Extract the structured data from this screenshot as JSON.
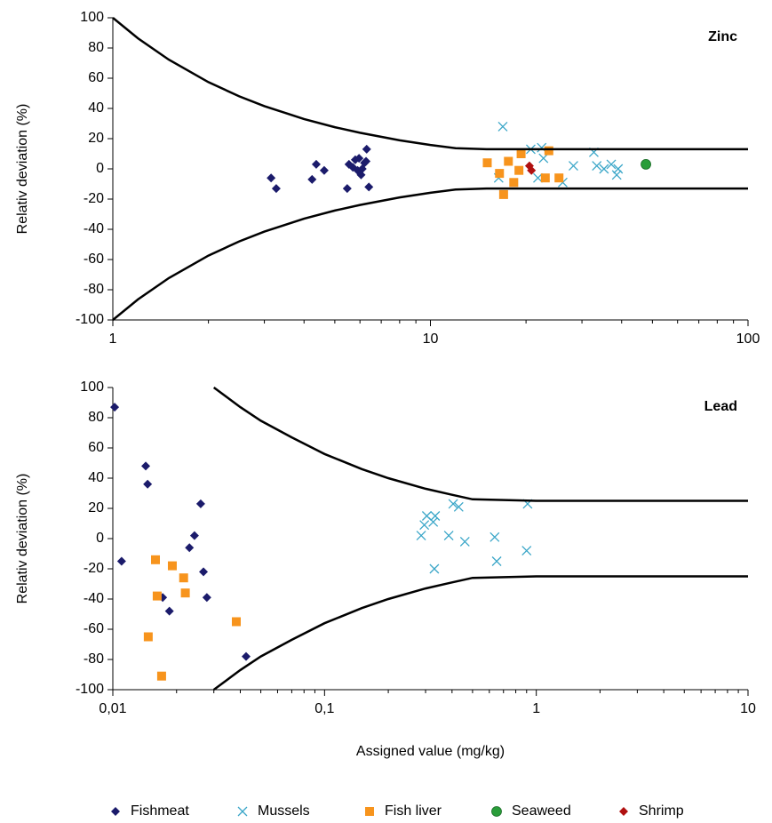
{
  "chart_data": [
    {
      "type": "scatter",
      "title": "Zinc",
      "y_label": "Relativ deviation (%)",
      "x_log": true,
      "xlim": [
        1,
        100
      ],
      "xticks": [
        1,
        10,
        100
      ],
      "ylim": [
        -100,
        100
      ],
      "yticks": [
        -100,
        -80,
        -60,
        -40,
        -20,
        0,
        20,
        40,
        60,
        80,
        100
      ],
      "series": [
        {
          "name": "Fishmeat",
          "color": "#1b1b6b",
          "marker": "diamond",
          "x": [
            3.15,
            3.27,
            4.24,
            4.37,
            4.63,
            5.47,
            5.54,
            5.7,
            5.8,
            5.9,
            5.96,
            6.05,
            6.1,
            6.2,
            6.27,
            6.3,
            6.4
          ],
          "values": [
            -6,
            -13,
            -7,
            3,
            -1,
            -13,
            3,
            1,
            6,
            -1,
            7,
            -4,
            0,
            4,
            5,
            13,
            -12
          ]
        },
        {
          "name": "Mussels",
          "color": "#3aa6c8",
          "marker": "x",
          "x": [
            16.9,
            16.4,
            20.7,
            22.4,
            22.7,
            21.8,
            26.1,
            28.2,
            32.7,
            33.4,
            35.2,
            37.1,
            38.6,
            39.0
          ],
          "values": [
            28,
            -6,
            13,
            14,
            7,
            -6,
            -9,
            2,
            11,
            2,
            0,
            3,
            -4,
            0
          ]
        },
        {
          "name": "Fish liver",
          "color": "#f7941d",
          "marker": "square",
          "x": [
            15.1,
            16.5,
            17.0,
            17.6,
            18.3,
            19.0,
            19.3,
            23.0,
            23.6,
            25.4
          ],
          "values": [
            4,
            -3,
            -17,
            5,
            -9,
            -1,
            10,
            -6,
            12,
            -6
          ]
        },
        {
          "name": "Seaweed",
          "color": "#2a9d3a",
          "marker": "circle",
          "x": [
            47.7
          ],
          "values": [
            3
          ]
        },
        {
          "name": "Shrimp",
          "color": "#b01010",
          "marker": "diamond",
          "x": [
            20.5,
            20.8
          ],
          "values": [
            2,
            -1
          ]
        },
        {
          "color": "#000000",
          "marker": "line",
          "x": [
            1,
            1.2,
            1.5,
            2,
            2.5,
            3,
            4,
            5,
            6,
            8,
            10,
            12,
            15,
            20,
            50,
            100
          ],
          "values": [
            100,
            86.4,
            72.3,
            57.4,
            48,
            41.5,
            33,
            27.6,
            23.9,
            18.9,
            15.8,
            13.7,
            13,
            13,
            13,
            13
          ]
        },
        {
          "color": "#000000",
          "marker": "line",
          "x": [
            1,
            1.2,
            1.5,
            2,
            2.5,
            3,
            4,
            5,
            6,
            8,
            10,
            12,
            15,
            20,
            50,
            100
          ],
          "values": [
            -100,
            -86.4,
            -72.3,
            -57.4,
            -48,
            -41.5,
            -33,
            -27.6,
            -23.9,
            -18.9,
            -15.8,
            -13.7,
            -13,
            -13,
            -13,
            -13
          ]
        }
      ]
    },
    {
      "type": "scatter",
      "title": "Lead",
      "y_label": "Relativ deviation (%)",
      "x_label": "Assigned value (mg/kg)",
      "x_log": true,
      "xlim": [
        0.01,
        10
      ],
      "xticks": [
        {
          "value": 0.01,
          "label": "0,01"
        },
        {
          "value": 0.1,
          "label": "0,1"
        },
        1,
        10
      ],
      "ylim": [
        -100,
        100
      ],
      "yticks": [
        -100,
        -80,
        -60,
        -40,
        -20,
        0,
        20,
        40,
        60,
        80,
        100
      ],
      "series": [
        {
          "name": "Fishmeat",
          "color": "#1b1b6b",
          "marker": "diamond",
          "x": [
            0.0102,
            0.011,
            0.0143,
            0.0146,
            0.0172,
            0.0185,
            0.023,
            0.0243,
            0.026,
            0.0268,
            0.0278,
            0.0426
          ],
          "values": [
            87,
            -15,
            48,
            36,
            -39,
            -48,
            -6,
            2,
            23,
            -22,
            -39,
            -78
          ]
        },
        {
          "name": "Mussels",
          "color": "#3aa6c8",
          "marker": "x",
          "x": [
            0.286,
            0.296,
            0.304,
            0.326,
            0.333,
            0.33,
            0.386,
            0.405,
            0.43,
            0.46,
            0.636,
            0.65,
            0.91,
            0.9
          ],
          "values": [
            2,
            9,
            15,
            11,
            15,
            -20,
            2,
            23,
            21,
            -2,
            1,
            -15,
            23,
            -8
          ]
        },
        {
          "name": "Fish liver",
          "color": "#f7941d",
          "marker": "square",
          "x": [
            0.0159,
            0.0162,
            0.0147,
            0.017,
            0.0191,
            0.0216,
            0.022,
            0.0383
          ],
          "values": [
            -14,
            -38,
            -65,
            -91,
            -18,
            -26,
            -36,
            -55
          ]
        },
        {
          "color": "#000000",
          "marker": "line",
          "x": [
            0.03,
            0.04,
            0.05,
            0.07,
            0.1,
            0.15,
            0.2,
            0.3,
            0.4,
            0.5,
            1,
            10
          ],
          "values": [
            100,
            87,
            78,
            67,
            56,
            46,
            40,
            33,
            29,
            26,
            25,
            25
          ]
        },
        {
          "color": "#000000",
          "marker": "line",
          "x": [
            0.03,
            0.04,
            0.05,
            0.07,
            0.1,
            0.15,
            0.2,
            0.3,
            0.4,
            0.5,
            1,
            10
          ],
          "values": [
            -100,
            -87,
            -78,
            -67,
            -56,
            -46,
            -40,
            -33,
            -29,
            -26,
            -25,
            -25
          ]
        }
      ]
    }
  ]
}
